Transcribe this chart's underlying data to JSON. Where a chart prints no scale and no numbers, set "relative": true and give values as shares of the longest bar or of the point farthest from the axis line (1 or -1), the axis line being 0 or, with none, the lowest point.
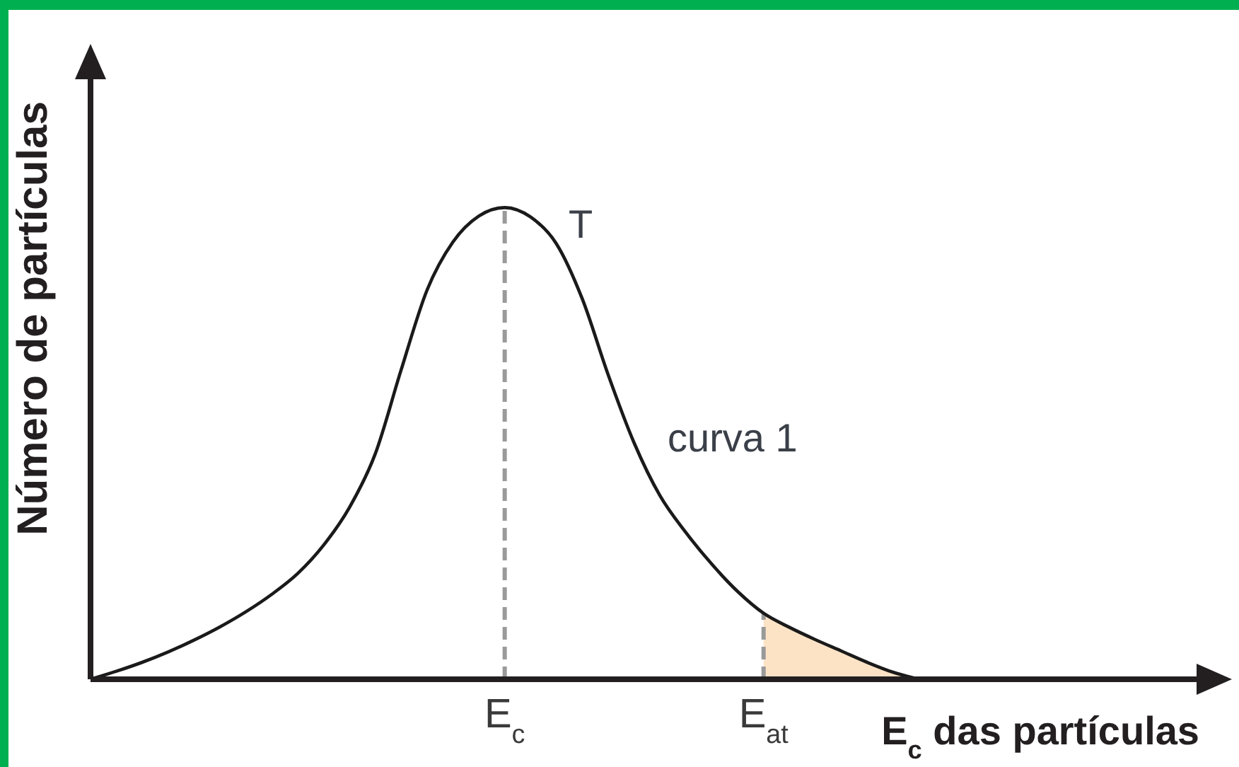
{
  "chart_data": {
    "type": "line",
    "xlabel": "E$_{c}$ das partículas",
    "ylabel": "Número de partículas",
    "relative": true,
    "categories": [
      null,
      null,
      null,
      null,
      null,
      null,
      null,
      null,
      null,
      null,
      null,
      null,
      null,
      null,
      null,
      null,
      "E$_{c}$",
      null,
      null,
      null,
      null,
      null,
      null,
      null,
      null,
      null,
      "E$_{at}$",
      null,
      null,
      null,
      null,
      null,
      null,
      null,
      null,
      null,
      null,
      null,
      null,
      null,
      null,
      null,
      null,
      null
    ],
    "series": [
      {
        "type": "line",
        "color": "#1a1a1a",
        "values": [
          0,
          0.017,
          0.036,
          0.058,
          0.083,
          0.111,
          0.143,
          0.18,
          0.224,
          0.284,
          0.364,
          0.478,
          0.656,
          0.825,
          0.927,
          0.982,
          1,
          0.98,
          0.923,
          0.806,
          0.645,
          0.501,
          0.389,
          0.311,
          0.244,
          0.186,
          0.14,
          0.11,
          0.084,
          0.06,
          0.036,
          0.015,
          0,
          null,
          null,
          null,
          null,
          null,
          null,
          null,
          null,
          null,
          null,
          null
        ]
      },
      {
        "type": "area",
        "color": "#fde3c6",
        "values": [
          null,
          null,
          null,
          null,
          null,
          null,
          null,
          null,
          null,
          null,
          null,
          null,
          null,
          null,
          null,
          null,
          null,
          null,
          null,
          null,
          null,
          null,
          null,
          null,
          null,
          null,
          0.14,
          0.11,
          0.084,
          0.06,
          0.036,
          0.015,
          0,
          null,
          null,
          null,
          null,
          null,
          null,
          null,
          null,
          null,
          null,
          null
        ]
      }
    ],
    "marker": "none",
    "line_style": "solid",
    "ref_lines": [
      {
        "axis": "x",
        "value": "E$_{c}$",
        "color": "#9a9a9a",
        "line_style": "dashed"
      },
      {
        "axis": "x",
        "value": "E$_{at}$",
        "color": "#9a9a9a",
        "line_style": "dashed"
      }
    ],
    "annotations": [
      "T",
      "curva 1"
    ]
  }
}
